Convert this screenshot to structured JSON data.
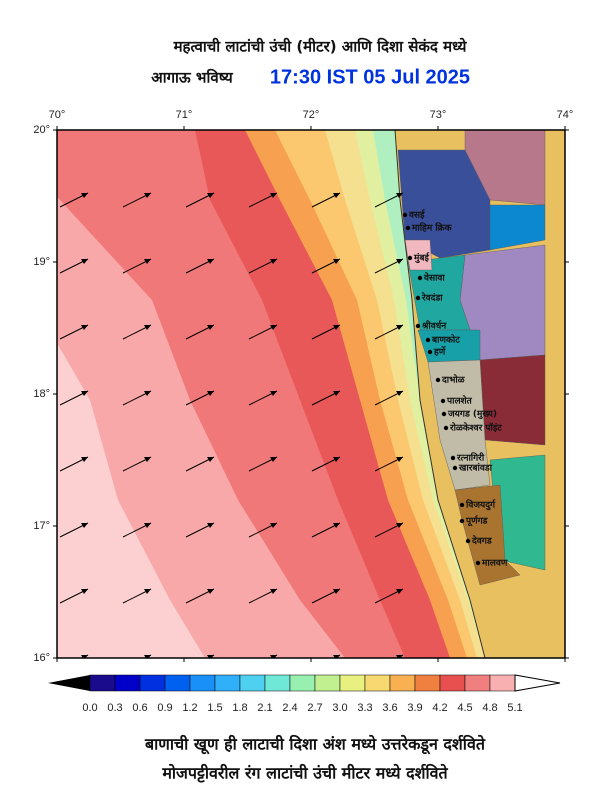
{
  "header": {
    "title": "महत्वाची लाटांची उंची (मीटर) आणि दिशा सेकंद मध्ये",
    "subtitle": "आगाऊ भविष्य",
    "datetime": "17:30 IST 05 Jul 2025"
  },
  "map": {
    "lon_labels": [
      "70°",
      "71°",
      "72°",
      "73°",
      "74°"
    ],
    "lat_labels": [
      "20°",
      "19°",
      "18°",
      "17°",
      "16°"
    ],
    "places": [
      "वसई",
      "माहिम क्रिक",
      "मुंबई",
      "वेसावा",
      "रेवदंडा",
      "श्रीवर्धन",
      "बाणकोट",
      "हर्णे",
      "दाभोळ",
      "पालशेत",
      "जयगड (मुख्य)",
      "रोळकेश्वर पॉइंट",
      "रत्नागिरी",
      "खारबांवडा",
      "विजयदुर्ग",
      "पूर्णगड",
      "देवगड",
      "मालवण"
    ]
  },
  "colorbar": {
    "ticks": [
      "0.0",
      "0.3",
      "0.6",
      "0.9",
      "1.2",
      "1.5",
      "1.8",
      "2.1",
      "2.4",
      "2.7",
      "3.0",
      "3.3",
      "3.6",
      "3.9",
      "4.2",
      "4.5",
      "4.8",
      "5.1"
    ]
  },
  "footer": {
    "line1": "बाणाची खूण ही लाटाची दिशा अंश मध्ये उत्तरेकडून दर्शविते",
    "line2": "मोजपट्टीवरील रंग लाटांची उंची मीटर मध्ये दर्शविते"
  }
}
